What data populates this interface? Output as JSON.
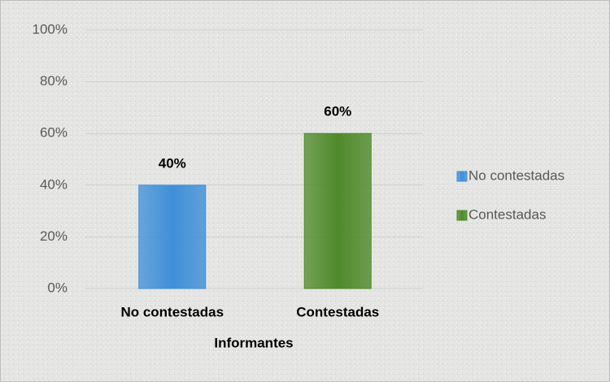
{
  "chart_data": {
    "type": "bar",
    "categories": [
      "No contestadas",
      "Contestadas"
    ],
    "values": [
      40,
      60
    ],
    "value_labels": [
      "40%",
      "60%"
    ],
    "colors": [
      "#3f8fd8",
      "#4f8a2a"
    ],
    "x_label": "Informantes",
    "ylim": [
      0,
      100
    ],
    "yticks": [
      {
        "value": 0,
        "label": "0%"
      },
      {
        "value": 20,
        "label": "20%"
      },
      {
        "value": 40,
        "label": "40%"
      },
      {
        "value": 60,
        "label": "60%"
      },
      {
        "value": 80,
        "label": "80%"
      },
      {
        "value": 100,
        "label": "100%"
      }
    ],
    "grid": true,
    "legend": "right"
  }
}
